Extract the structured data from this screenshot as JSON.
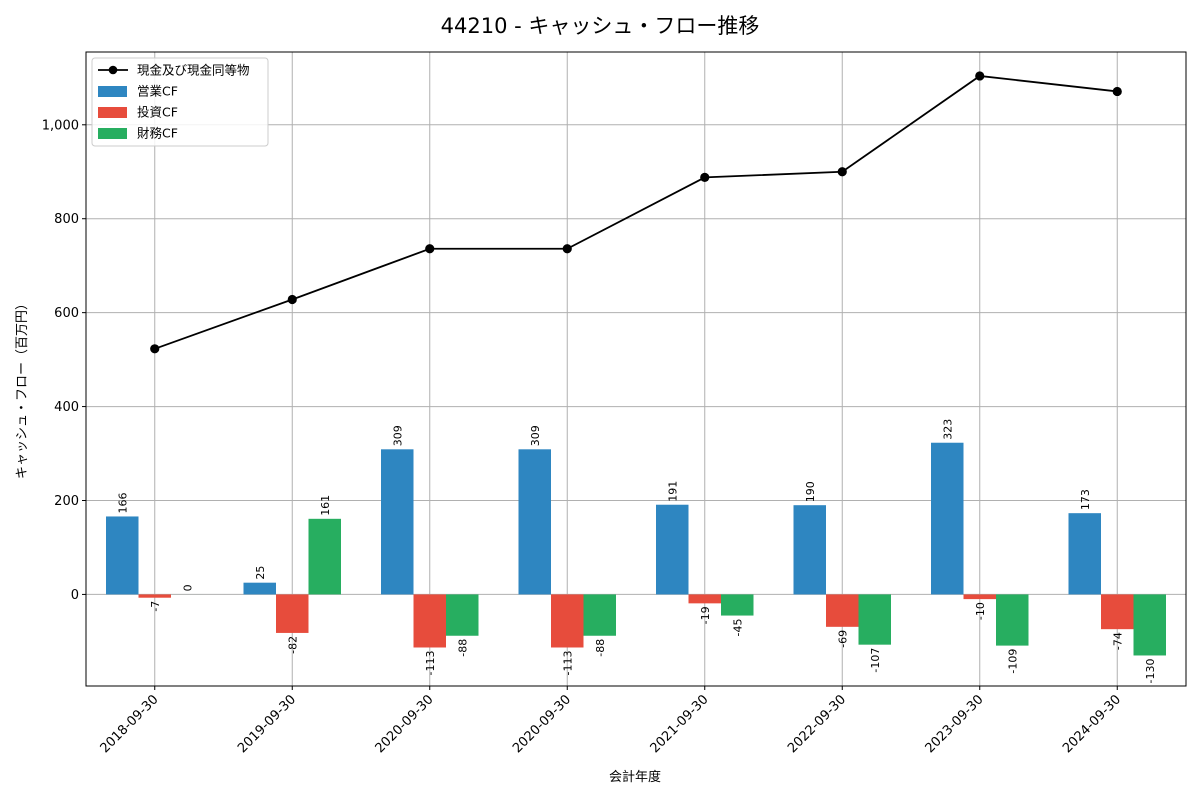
{
  "chart_data": {
    "type": "bar",
    "title": "44210 - キャッシュ・フロー推移",
    "xlabel": "会計年度",
    "ylabel": "キャッシュ・フロー（百万円）",
    "categories": [
      "2018-09-30",
      "2019-09-30",
      "2020-09-30",
      "2020-09-30",
      "2021-09-30",
      "2022-09-30",
      "2023-09-30",
      "2024-09-30"
    ],
    "ylim": [
      -195,
      1155
    ],
    "yticks": [
      0,
      200,
      400,
      600,
      800,
      1000
    ],
    "ytick_labels": [
      "0",
      "200",
      "400",
      "600",
      "800",
      "1,000"
    ],
    "grid": true,
    "legend_position": "top-left",
    "series": [
      {
        "name": "営業CF",
        "kind": "bar",
        "color": "#2e86c1",
        "values": [
          166,
          25,
          309,
          309,
          191,
          190,
          323,
          173
        ],
        "labels": [
          "166",
          "25",
          "309",
          "309",
          "191",
          "190",
          "323",
          "173"
        ]
      },
      {
        "name": "投資CF",
        "kind": "bar",
        "color": "#e74c3c",
        "values": [
          -7,
          -82,
          -113,
          -113,
          -19,
          -69,
          -10,
          -74
        ],
        "labels": [
          "-7",
          "-82",
          "-113",
          "-113",
          "-19",
          "-69",
          "-10",
          "-74"
        ]
      },
      {
        "name": "財務CF",
        "kind": "bar",
        "color": "#27ae60",
        "values": [
          0,
          161,
          -88,
          -88,
          -45,
          -107,
          -109,
          -130
        ],
        "labels": [
          "0",
          "161",
          "-88",
          "-88",
          "-45",
          "-107",
          "-109",
          "-130"
        ]
      },
      {
        "name": "現金及び現金同等物",
        "kind": "line",
        "color": "#000000",
        "values": [
          523,
          628,
          736,
          736,
          888,
          900,
          1104,
          1071
        ]
      }
    ]
  }
}
